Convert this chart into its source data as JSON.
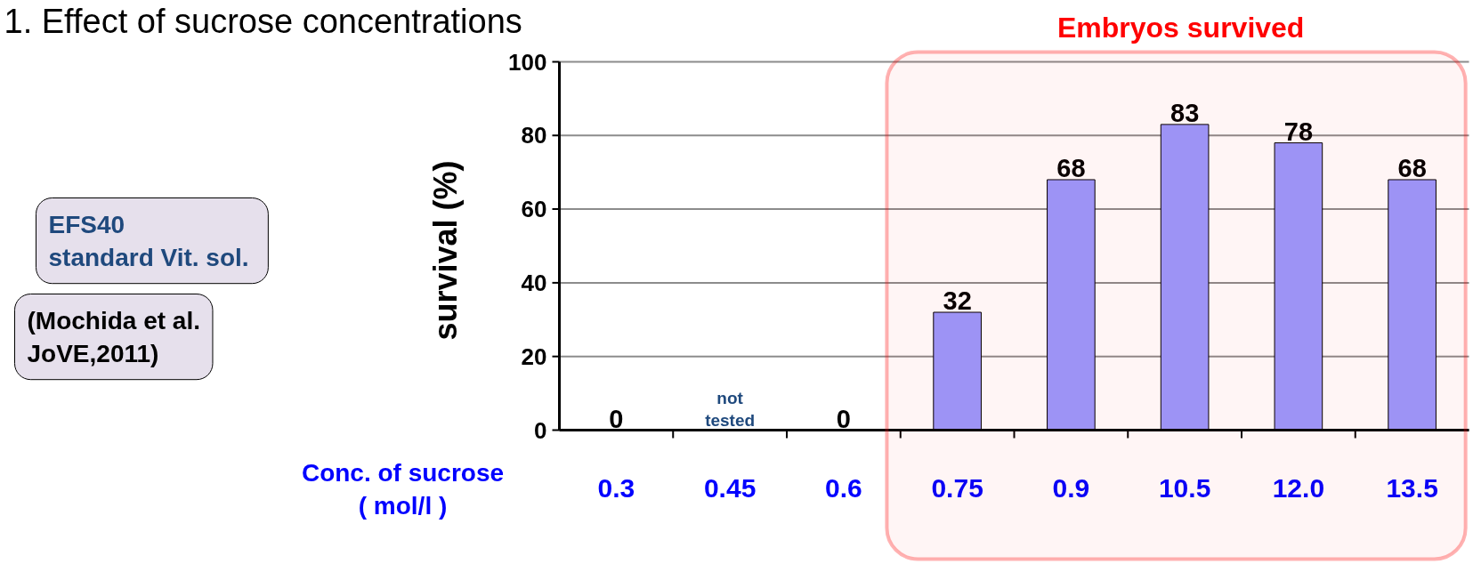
{
  "chart_data": {
    "type": "bar",
    "title": "1.  Effect of sucrose concentrations",
    "xlabel": "Conc. of sucrose ( mol/l )",
    "ylabel": "survival  (%)",
    "categories": [
      "0.3",
      "0.45",
      "0.6",
      "0.75",
      "0.9",
      "10.5",
      "12.0",
      "13.5"
    ],
    "values": [
      0,
      null,
      0,
      32,
      68,
      83,
      78,
      68
    ],
    "value_labels": [
      "0",
      "not tested",
      "0",
      "32",
      "68",
      "83",
      "78",
      "68"
    ],
    "color": "#9999ff",
    "ylim": [
      0,
      100
    ],
    "yticks": [
      0,
      20,
      40,
      60,
      80,
      100
    ],
    "grid": "y",
    "bands": [
      {
        "axis": "x",
        "from": "0.75",
        "to": "13.5",
        "label": "Embryos  survived",
        "color": "#ff0000"
      }
    ],
    "annotations": [
      "EFS40\nstandard  Vit. sol.",
      "(Mochida et al.\nJoVE,2011)"
    ]
  }
}
